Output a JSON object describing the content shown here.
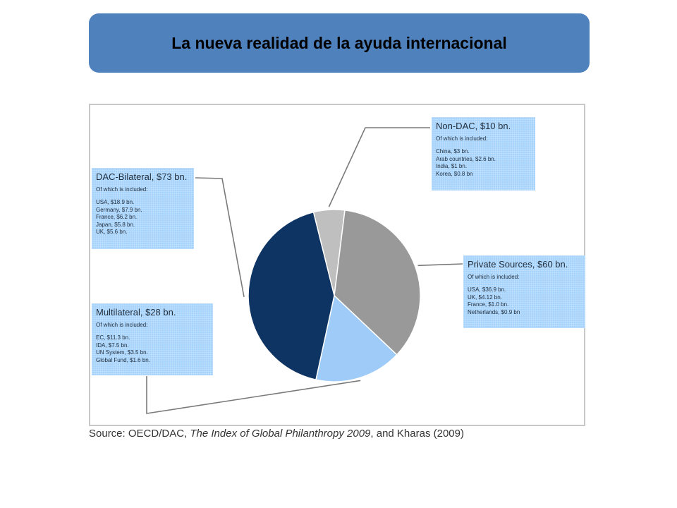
{
  "slide": {
    "title": "La nueva realidad de la ayuda internacional",
    "title_bar_color": "#4f81bd"
  },
  "source": {
    "prefix": "Source: OECD/DAC, ",
    "italic": "The Index of Global Philanthropy 2009",
    "suffix": ", and Kharas (2009)"
  },
  "chart_data": {
    "type": "pie",
    "unit": "$ bn.",
    "slices": [
      {
        "name": "Non-DAC",
        "value": 10,
        "label": "Non-DAC, $10 bn.",
        "color": "#bfbfbf",
        "subtitle": "Of which is included:",
        "items": [
          "China, $3 bn.",
          "Arab countries, $2.6 bn.",
          "India, $1 bn.",
          "Korea, $0.8 bn"
        ]
      },
      {
        "name": "Private Sources",
        "value": 60,
        "label": "Private Sources, $60 bn.",
        "color": "#999999",
        "subtitle": "Of which is included:",
        "items": [
          "USA, $36.9 bn.",
          "UK, $4.12 bn.",
          "France, $1.0 bn.",
          "Netherlands, $0.9 bn"
        ]
      },
      {
        "name": "Multilateral",
        "value": 28,
        "label": "Multilateral, $28 bn.",
        "color": "#9ecbf7",
        "subtitle": "Of which is included:",
        "items": [
          "EC, $11.3 bn.",
          "IDA, $7.5 bn.",
          "UN System, $3.5 bn.",
          "Global Fund, $1.6 bn."
        ]
      },
      {
        "name": "DAC-Bilateral",
        "value": 73,
        "label": "DAC-Bilateral, $73 bn.",
        "color": "#0e3463",
        "subtitle": "Of which is included:",
        "items": [
          "USA, $18.9 bn.",
          "Germany, $7.9 bn.",
          "France, $6.2 bn.",
          "Japan, $5.8 bn.",
          "UK, $5.6 bn."
        ]
      }
    ]
  }
}
